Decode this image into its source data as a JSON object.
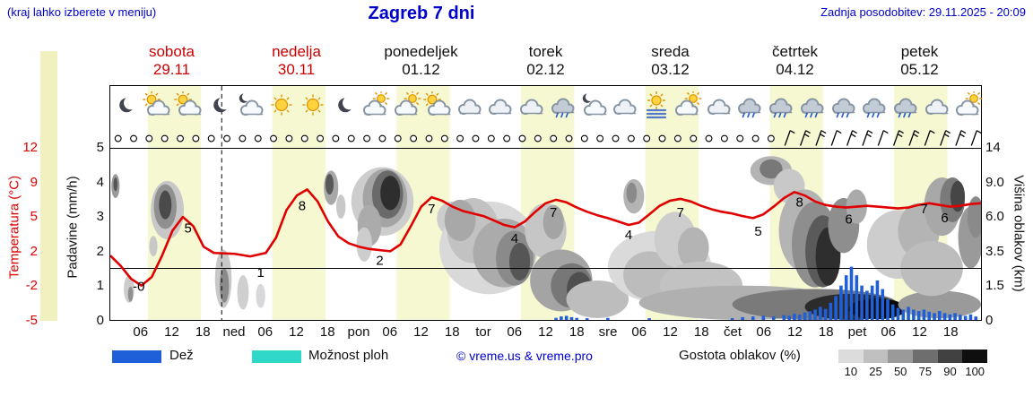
{
  "header": {
    "hint": "(kraj lahko izberete v meniju)",
    "title": "Zagreb 7 dni",
    "updated": "Zadnja posodobitev: 29.11.2025 - 20:09"
  },
  "days": [
    {
      "name": "sobota",
      "date": "29.11",
      "color": "red"
    },
    {
      "name": "nedelja",
      "date": "30.11",
      "color": "red"
    },
    {
      "name": "ponedeljek",
      "date": "01.12",
      "color": "black"
    },
    {
      "name": "torek",
      "date": "02.12",
      "color": "black"
    },
    {
      "name": "sreda",
      "date": "03.12",
      "color": "black"
    },
    {
      "name": "četrtek",
      "date": "04.12",
      "color": "black"
    },
    {
      "name": "petek",
      "date": "05.12",
      "color": "black"
    }
  ],
  "axes": {
    "temp_label": "Temperatura (°C)",
    "temp_ticks": [
      "12",
      "9",
      "5",
      "2",
      "-2",
      "-5"
    ],
    "precip_label": "Padavine (mm/h)",
    "precip_ticks": [
      "5",
      "4",
      "3",
      "2",
      "1",
      "0"
    ],
    "cloud_label": "Višina oblakov (km)",
    "cloud_ticks": [
      "14",
      "9.0",
      "6.0",
      "3.5",
      "1.5",
      "0"
    ],
    "x_ticks": [
      [
        6,
        "06"
      ],
      [
        12,
        "12"
      ],
      [
        18,
        "18"
      ],
      [
        24,
        "ned"
      ],
      [
        30,
        "06"
      ],
      [
        36,
        "12"
      ],
      [
        42,
        "18"
      ],
      [
        48,
        "pon"
      ],
      [
        54,
        "06"
      ],
      [
        60,
        "12"
      ],
      [
        66,
        "18"
      ],
      [
        72,
        "tor"
      ],
      [
        78,
        "06"
      ],
      [
        84,
        "12"
      ],
      [
        90,
        "18"
      ],
      [
        96,
        "sre"
      ],
      [
        102,
        "06"
      ],
      [
        108,
        "12"
      ],
      [
        114,
        "18"
      ],
      [
        120,
        "čet"
      ],
      [
        126,
        "06"
      ],
      [
        132,
        "12"
      ],
      [
        138,
        "18"
      ],
      [
        144,
        "pet"
      ],
      [
        150,
        "06"
      ],
      [
        156,
        "12"
      ],
      [
        162,
        "18"
      ]
    ]
  },
  "legend": {
    "rain_label": "Dež",
    "showers_label": "Možnost ploh",
    "credit": "© vreme.us & vreme.pro",
    "density_label": "Gostota oblakov (%)",
    "density_ticks": [
      "10",
      "25",
      "50",
      "75",
      "90",
      "100"
    ]
  },
  "colors": {
    "accent_blue": "#0000cc",
    "temp_red": "#dd0000",
    "day_red": "#cc0000",
    "band_yellow": "#f5f8d0",
    "strip_yellow": "#f1f1bf",
    "rain_blue": "#1f5fd8",
    "showers_cyan": "#2fd8c8",
    "curve_red": "#e00000",
    "gradient": [
      "#dcdcdc",
      "#c0c0c0",
      "#9a9a9a",
      "#6e6e6e",
      "#414141",
      "#0f0f0f"
    ]
  },
  "chart_data": {
    "type": "line",
    "title": "Zagreb 7 dni",
    "x_unit": "ure od 29.11 00:00 (7 dni)",
    "x_range_hours": [
      0,
      168
    ],
    "temp_scale_ticks": [
      -5,
      -2,
      2,
      5,
      9,
      12
    ],
    "precip_scale": [
      0,
      5
    ],
    "cloud_height_scale_km": [
      0,
      1.5,
      3.5,
      6,
      9,
      14
    ],
    "daylight_hours": [
      7.25,
      17.5
    ],
    "now_hour": 21.5,
    "temperature_c": [
      [
        0,
        1.5
      ],
      [
        2,
        0.3
      ],
      [
        4,
        -1.2
      ],
      [
        6,
        -2
      ],
      [
        8,
        -1
      ],
      [
        10,
        1.5
      ],
      [
        12,
        3.8
      ],
      [
        14,
        5
      ],
      [
        16,
        4.2
      ],
      [
        18,
        2.4
      ],
      [
        20,
        1.8
      ],
      [
        24,
        1.7
      ],
      [
        27,
        1.4
      ],
      [
        30,
        1.8
      ],
      [
        32,
        3.2
      ],
      [
        34,
        5.8
      ],
      [
        36,
        7.5
      ],
      [
        38,
        8.2
      ],
      [
        40,
        6.8
      ],
      [
        42,
        4.6
      ],
      [
        44,
        3.3
      ],
      [
        46,
        2.7
      ],
      [
        48,
        2.4
      ],
      [
        50,
        2.2
      ],
      [
        54,
        2
      ],
      [
        56,
        2.6
      ],
      [
        58,
        4.2
      ],
      [
        60,
        6.2
      ],
      [
        62,
        7.3
      ],
      [
        64,
        6.9
      ],
      [
        66,
        6.2
      ],
      [
        68,
        5.7
      ],
      [
        70,
        5.4
      ],
      [
        72,
        5.1
      ],
      [
        74,
        4.7
      ],
      [
        76,
        4.3
      ],
      [
        78,
        4.1
      ],
      [
        80,
        4.6
      ],
      [
        82,
        5.6
      ],
      [
        84,
        6.6
      ],
      [
        86,
        7
      ],
      [
        88,
        6.7
      ],
      [
        90,
        6.1
      ],
      [
        92,
        5.6
      ],
      [
        94,
        5.2
      ],
      [
        96,
        4.9
      ],
      [
        98,
        4.6
      ],
      [
        100,
        4.3
      ],
      [
        102,
        4.5
      ],
      [
        104,
        5.3
      ],
      [
        106,
        6.3
      ],
      [
        108,
        6.9
      ],
      [
        110,
        7.1
      ],
      [
        112,
        6.8
      ],
      [
        114,
        6.3
      ],
      [
        116,
        5.9
      ],
      [
        118,
        5.6
      ],
      [
        120,
        5.4
      ],
      [
        122,
        5.1
      ],
      [
        124,
        4.9
      ],
      [
        126,
        5.3
      ],
      [
        128,
        6.2
      ],
      [
        130,
        7.2
      ],
      [
        132,
        7.9
      ],
      [
        134,
        7.5
      ],
      [
        136,
        6.8
      ],
      [
        138,
        6.4
      ],
      [
        140,
        6.2
      ],
      [
        142,
        6.1
      ],
      [
        144,
        6.2
      ],
      [
        146,
        6.3
      ],
      [
        148,
        6.2
      ],
      [
        150,
        6.1
      ],
      [
        152,
        6
      ],
      [
        154,
        6.1
      ],
      [
        156,
        6.4
      ],
      [
        158,
        6.6
      ],
      [
        160,
        6.4
      ],
      [
        162,
        6.2
      ],
      [
        164,
        6.3
      ],
      [
        166,
        6.5
      ],
      [
        168,
        6.6
      ]
    ],
    "temperature_point_labels": [
      [
        "-0",
        5.5,
        0.85
      ],
      [
        "5",
        15,
        2.55
      ],
      [
        "1",
        29,
        1.25
      ],
      [
        "8",
        37,
        3.2
      ],
      [
        "2",
        52,
        1.6
      ],
      [
        "7",
        62,
        3.1
      ],
      [
        "4",
        78,
        2.25
      ],
      [
        "7",
        85.5,
        3
      ],
      [
        "4",
        100,
        2.35
      ],
      [
        "7",
        110,
        3
      ],
      [
        "5",
        125,
        2.45
      ],
      [
        "8",
        133,
        3.3
      ],
      [
        "6",
        142.5,
        2.8
      ],
      [
        "7",
        157,
        3.1
      ],
      [
        "6",
        161,
        2.85
      ]
    ],
    "rain_mm_h": [
      [
        86,
        0.06
      ],
      [
        87,
        0.1
      ],
      [
        88,
        0.12
      ],
      [
        89,
        0.08
      ],
      [
        90,
        0.06
      ],
      [
        92,
        0.05
      ],
      [
        96,
        0.06
      ],
      [
        104,
        0.05
      ],
      [
        120,
        0.05
      ],
      [
        122,
        0.08
      ],
      [
        124,
        0.1
      ],
      [
        126,
        0.12
      ],
      [
        128,
        0.1
      ],
      [
        130,
        0.14
      ],
      [
        131,
        0.12
      ],
      [
        132,
        0.18
      ],
      [
        133,
        0.15
      ],
      [
        134,
        0.22
      ],
      [
        135,
        0.25
      ],
      [
        136,
        0.3
      ],
      [
        137,
        0.38
      ],
      [
        138,
        0.32
      ],
      [
        139,
        0.5
      ],
      [
        140,
        0.7
      ],
      [
        141,
        1
      ],
      [
        142,
        1.3
      ],
      [
        143,
        1.55
      ],
      [
        144,
        1.3
      ],
      [
        145,
        1
      ],
      [
        146,
        0.85
      ],
      [
        147,
        1
      ],
      [
        148,
        1.15
      ],
      [
        149,
        0.9
      ],
      [
        150,
        0.6
      ],
      [
        151,
        0.45
      ],
      [
        152,
        0.35
      ],
      [
        153,
        0.3
      ],
      [
        154,
        0.38
      ],
      [
        155,
        0.3
      ],
      [
        156,
        0.26
      ],
      [
        157,
        0.3
      ],
      [
        158,
        0.24
      ],
      [
        159,
        0.2
      ],
      [
        160,
        0.26
      ],
      [
        161,
        0.2
      ],
      [
        162,
        0.16
      ],
      [
        163,
        0.2
      ],
      [
        164,
        0.15
      ],
      [
        165,
        0.12
      ],
      [
        166,
        0.16
      ],
      [
        167,
        0.1
      ]
    ],
    "cloud_blobs": [
      [
        1,
        3.9,
        0.8,
        0.35,
        "#9a9a9a"
      ],
      [
        1,
        3.95,
        0.4,
        0.2,
        "#555555"
      ],
      [
        11,
        3.2,
        3.2,
        0.85,
        "#c8c8c8"
      ],
      [
        10.6,
        3.3,
        2.2,
        0.65,
        "#909090"
      ],
      [
        10.6,
        3.35,
        1.2,
        0.42,
        "#4a4a4a"
      ],
      [
        8.3,
        2.15,
        0.8,
        0.3,
        "#c8c8c8"
      ],
      [
        3.6,
        0.9,
        1,
        0.4,
        "#cccccc"
      ],
      [
        3.9,
        0.75,
        0.5,
        0.22,
        "#909090"
      ],
      [
        21.8,
        1.2,
        1.6,
        0.85,
        "#c8c8c8"
      ],
      [
        22,
        1,
        0.9,
        0.5,
        "#8a8a8a"
      ],
      [
        25.6,
        0.8,
        1.1,
        0.5,
        "#cfcfcf"
      ],
      [
        29,
        0.7,
        0.9,
        0.35,
        "#d8d8d8"
      ],
      [
        42.6,
        3.85,
        1.4,
        0.5,
        "#a8a8a8"
      ],
      [
        42.3,
        3.95,
        0.8,
        0.3,
        "#585858"
      ],
      [
        44.5,
        3.3,
        0.9,
        0.35,
        "#c8c8c8"
      ],
      [
        52.5,
        3.45,
        6,
        1,
        "#cdcdcd"
      ],
      [
        53,
        3.55,
        4.3,
        0.85,
        "#a4a4a4"
      ],
      [
        53.5,
        3.65,
        3,
        0.7,
        "#6a6a6a"
      ],
      [
        54,
        3.7,
        1.9,
        0.5,
        "#2e2e2e"
      ],
      [
        50,
        2.75,
        2.3,
        0.6,
        "#ababab"
      ],
      [
        49,
        2.2,
        1.5,
        0.5,
        "#cdcdcd"
      ],
      [
        66,
        2.95,
        3,
        0.5,
        "#cdcdcd"
      ],
      [
        73,
        2.1,
        9.5,
        1.35,
        "#d9d9d9"
      ],
      [
        70,
        2.6,
        5,
        0.95,
        "#c2c2c2"
      ],
      [
        67.5,
        2.9,
        3,
        0.6,
        "#a8a8a8"
      ],
      [
        76,
        1.95,
        6,
        1,
        "#ababab"
      ],
      [
        78,
        1.8,
        3.6,
        0.8,
        "#8a8a8a"
      ],
      [
        79,
        1.7,
        2,
        0.55,
        "#565656"
      ],
      [
        84,
        2.6,
        4,
        0.8,
        "#c6c6c6"
      ],
      [
        85.5,
        2.85,
        2,
        0.5,
        "#a4a4a4"
      ],
      [
        87,
        1.15,
        6,
        0.9,
        "#a4a4a4"
      ],
      [
        89,
        1,
        4,
        0.65,
        "#777777"
      ],
      [
        90.5,
        0.9,
        2.4,
        0.5,
        "#4f4f4f"
      ],
      [
        94,
        0.6,
        6,
        0.55,
        "#bdbdbd"
      ],
      [
        106,
        1.55,
        10,
        1.05,
        "#dadada"
      ],
      [
        104,
        1.3,
        5,
        0.7,
        "#bcbcbc"
      ],
      [
        109,
        2.35,
        4,
        0.8,
        "#cdcdcd"
      ],
      [
        112.5,
        2.1,
        3,
        0.6,
        "#b4b4b4"
      ],
      [
        101,
        3.6,
        2,
        0.5,
        "#b4b4b4"
      ],
      [
        100.6,
        3.7,
        1,
        0.3,
        "#8a8a8a"
      ],
      [
        114,
        1,
        8,
        0.7,
        "#c2c2c2"
      ],
      [
        122,
        0.5,
        20,
        0.5,
        "#b0b0b0"
      ],
      [
        136,
        0.45,
        16,
        0.45,
        "#7a7a7a"
      ],
      [
        143,
        0.38,
        9,
        0.38,
        "#2b2b2b"
      ],
      [
        148,
        0.32,
        5.5,
        0.3,
        "#0a0a0a"
      ],
      [
        160,
        0.45,
        8,
        0.4,
        "#9a9a9a"
      ],
      [
        127.5,
        4.35,
        4,
        0.42,
        "#b4b4b4"
      ],
      [
        127.5,
        4.4,
        2.2,
        0.28,
        "#787878"
      ],
      [
        131,
        3.9,
        3,
        0.5,
        "#c8c8c8"
      ],
      [
        134,
        2.6,
        5,
        1.2,
        "#b4b4b4"
      ],
      [
        136,
        2.2,
        4.5,
        1.25,
        "#8e8e8e"
      ],
      [
        137.5,
        2,
        3.4,
        1.05,
        "#5a5a5a"
      ],
      [
        138.5,
        1.85,
        2.4,
        0.85,
        "#2e2e2e"
      ],
      [
        141.5,
        2.75,
        3,
        0.8,
        "#8e8e8e"
      ],
      [
        144,
        3.3,
        2,
        0.5,
        "#aaaaaa"
      ],
      [
        152,
        2.2,
        6,
        1,
        "#cdcdcd"
      ],
      [
        156,
        2.6,
        4,
        0.8,
        "#b4b4b4"
      ],
      [
        160.5,
        3.3,
        3.5,
        0.85,
        "#a8a8a8"
      ],
      [
        162.5,
        3.5,
        2.4,
        0.65,
        "#7a7a7a"
      ],
      [
        163.5,
        3.6,
        1.4,
        0.45,
        "#464646"
      ],
      [
        158.5,
        1.5,
        6,
        0.8,
        "#bdbdbd"
      ],
      [
        166,
        2.4,
        2.4,
        0.9,
        "#9a9a9a"
      ],
      [
        167,
        3,
        1.6,
        0.6,
        "#8a8a8a"
      ]
    ],
    "symbols": {
      "circle_hours_start": 1.5,
      "circle_hours_end": 128,
      "barb_hours_start": 130.5,
      "barb_hours_end": 167,
      "step_h": 3
    },
    "weather_icons": [
      "moon",
      "sun-cloud",
      "sun-cloud",
      "moon",
      "moon-cloud",
      "sun",
      "sun",
      "moon",
      "cloud-sun",
      "cloud-sun",
      "sun-cloud",
      "cloud",
      "cloud",
      "cloud",
      "cloud-rain",
      "moon-cloud",
      "cloud",
      "fog-sun",
      "cloud-sun",
      "cloud",
      "cloud-rain",
      "cloud-rain",
      "cloud-rain",
      "cloud-rain",
      "cloud-rain",
      "cloud-rain",
      "cloud",
      "cloud-sun"
    ]
  }
}
